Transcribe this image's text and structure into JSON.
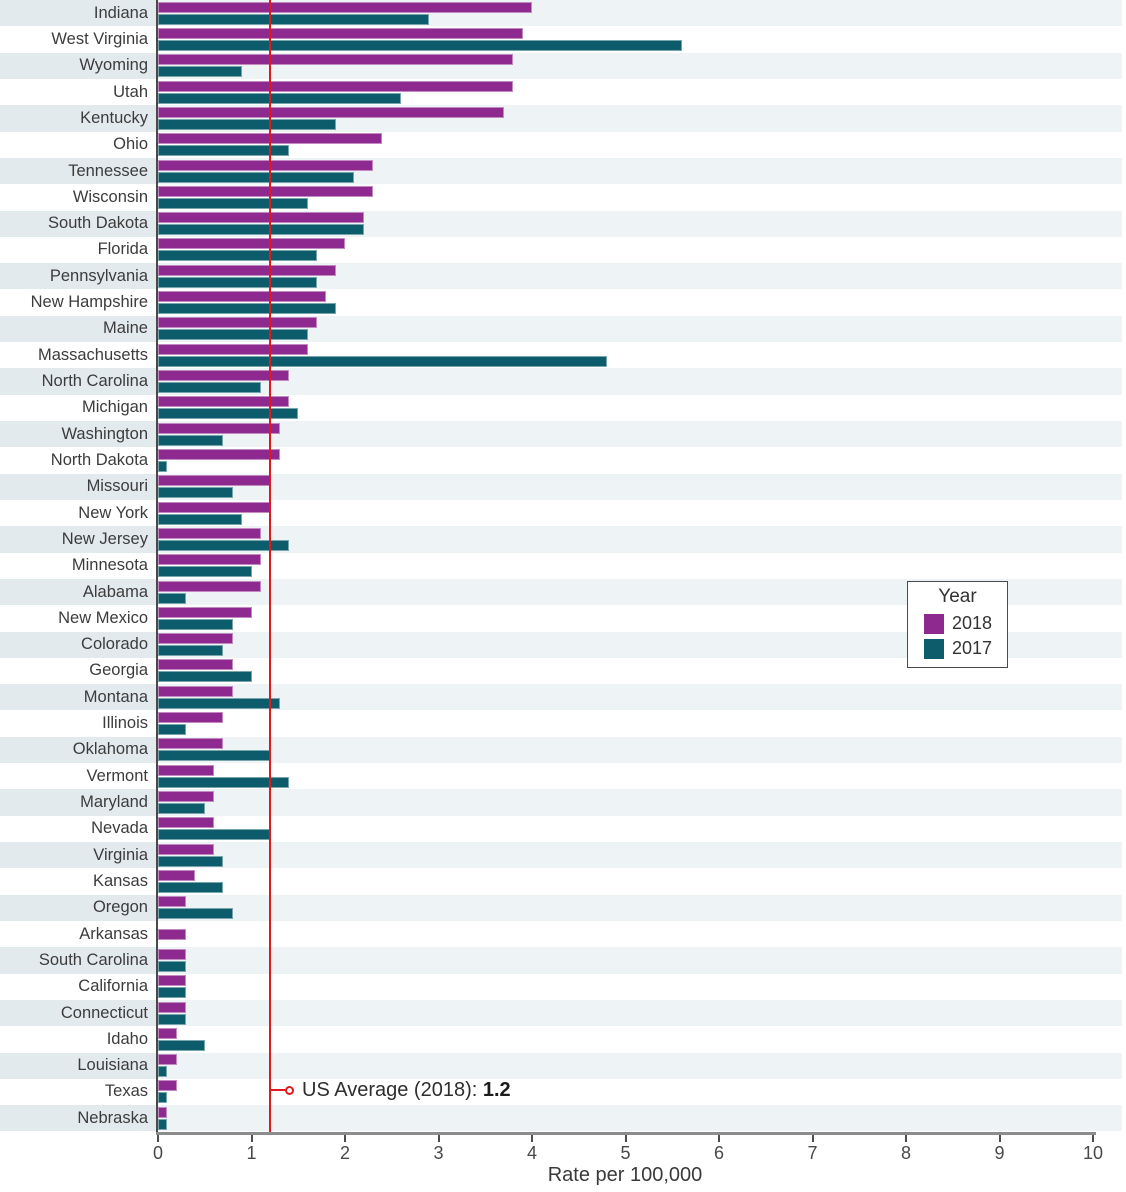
{
  "chart_data": {
    "type": "bar",
    "orientation": "horizontal",
    "xlabel": "Rate per 100,000",
    "xlim": [
      0,
      10.3
    ],
    "x_ticks": [
      0,
      1,
      2,
      3,
      4,
      5,
      6,
      7,
      8,
      9,
      10
    ],
    "grid": "row-stripes",
    "legend_position": "center-right",
    "legend": {
      "title": "Year",
      "entries": [
        {
          "label": "2018",
          "color": "#8e2a8f"
        },
        {
          "label": "2017",
          "color": "#0c5c6b"
        }
      ]
    },
    "annotation": {
      "label": "US Average (2018): ",
      "value": "1.2",
      "x": 1.2,
      "line_color": "#e2191b"
    },
    "categories": [
      "Indiana",
      "West Virginia",
      "Wyoming",
      "Utah",
      "Kentucky",
      "Ohio",
      "Tennessee",
      "Wisconsin",
      "South Dakota",
      "Florida",
      "Pennsylvania",
      "New Hampshire",
      "Maine",
      "Massachusetts",
      "North Carolina",
      "Michigan",
      "Washington",
      "North Dakota",
      "Missouri",
      "New York",
      "New Jersey",
      "Minnesota",
      "Alabama",
      "New Mexico",
      "Colorado",
      "Georgia",
      "Montana",
      "Illinois",
      "Oklahoma",
      "Vermont",
      "Maryland",
      "Nevada",
      "Virginia",
      "Kansas",
      "Oregon",
      "Arkansas",
      "South Carolina",
      "California",
      "Connecticut",
      "Idaho",
      "Louisiana",
      "Texas",
      "Nebraska"
    ],
    "series": [
      {
        "name": "2018",
        "color": "#8e2a8f",
        "values": [
          4.0,
          3.9,
          3.8,
          3.8,
          3.7,
          2.4,
          2.3,
          2.3,
          2.2,
          2.0,
          1.9,
          1.8,
          1.7,
          1.6,
          1.4,
          1.4,
          1.3,
          1.3,
          1.2,
          1.2,
          1.1,
          1.1,
          1.1,
          1.0,
          0.8,
          0.8,
          0.8,
          0.7,
          0.7,
          0.6,
          0.6,
          0.6,
          0.6,
          0.4,
          0.3,
          0.3,
          0.3,
          0.3,
          0.3,
          0.2,
          0.2,
          0.2,
          0.1
        ]
      },
      {
        "name": "2017",
        "color": "#0c5c6b",
        "values": [
          2.9,
          5.6,
          0.9,
          2.6,
          1.9,
          1.4,
          2.1,
          1.6,
          2.2,
          1.7,
          1.7,
          1.9,
          1.6,
          4.8,
          1.1,
          1.5,
          0.7,
          0.1,
          0.8,
          0.9,
          1.4,
          1.0,
          0.3,
          0.8,
          0.7,
          1.0,
          1.3,
          0.3,
          1.2,
          1.4,
          0.5,
          1.2,
          0.7,
          0.7,
          0.8,
          null,
          0.3,
          0.3,
          0.3,
          0.5,
          0.1,
          0.1,
          0.1
        ]
      }
    ]
  },
  "colors": {
    "bar_2018": "#8e2a8f",
    "bar_2017": "#0c5c6b",
    "average_line": "#e2191b",
    "row_stripe_label": "#e3eaee",
    "row_stripe_plot": "#eef3f6",
    "axis_spine": "#4a4a4a"
  }
}
